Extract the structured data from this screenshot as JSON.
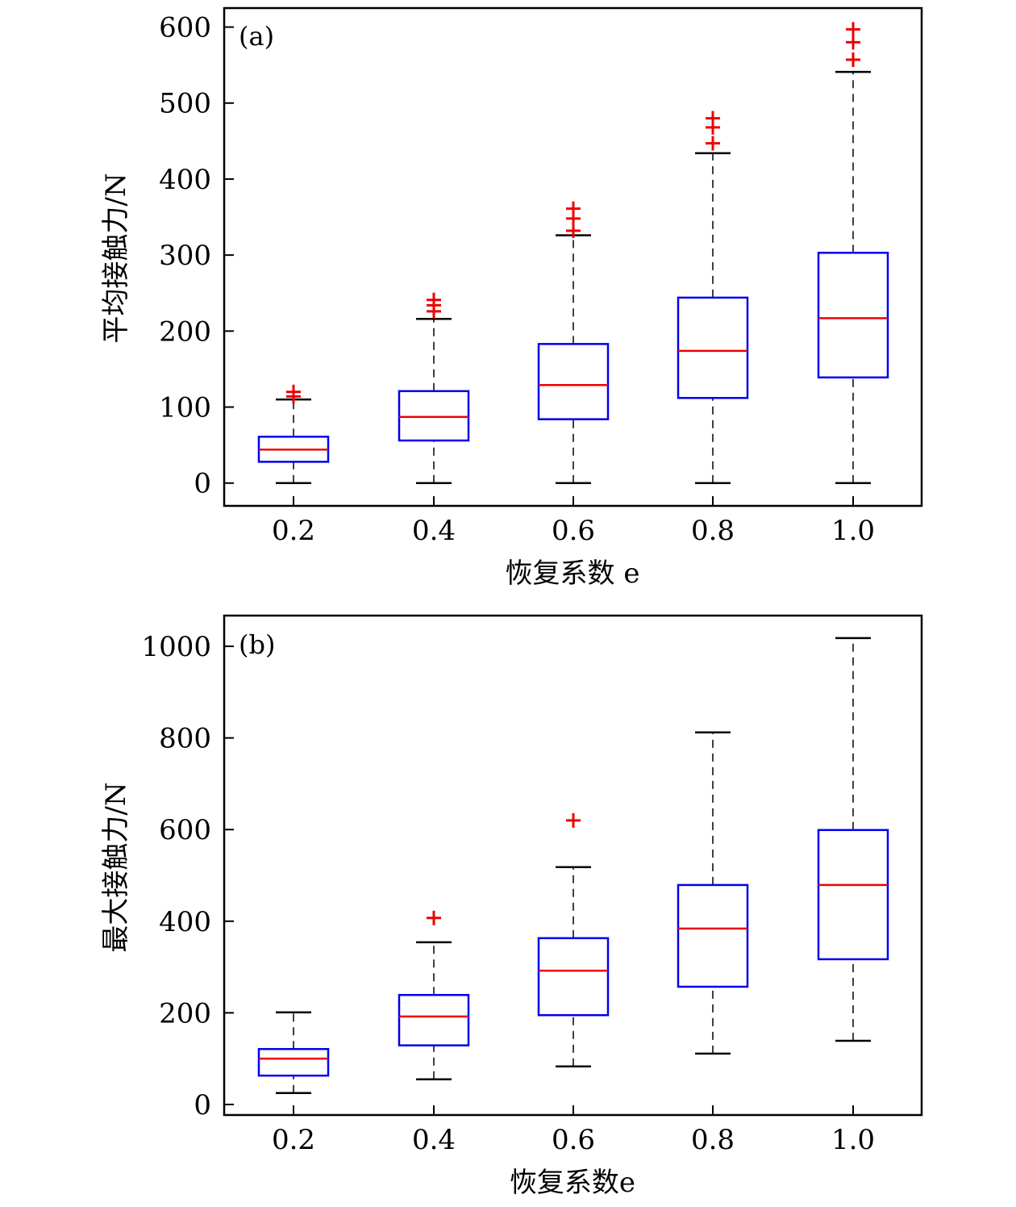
{
  "chart_data": [
    {
      "type": "box",
      "panel_label": "(a)",
      "xlabel": "恢复系数 e",
      "ylabel": "平均接触力/N",
      "categories": [
        "0.2",
        "0.4",
        "0.6",
        "0.8",
        "1.0"
      ],
      "ylim": [
        -30,
        625
      ],
      "yticks": [
        0,
        100,
        200,
        300,
        400,
        500,
        600
      ],
      "grid": false,
      "boxes": [
        {
          "whisker_low": 0,
          "q1": 28,
          "median": 44,
          "q3": 61,
          "whisker_high": 110,
          "outliers": [
            114,
            120
          ]
        },
        {
          "whisker_low": 0,
          "q1": 56,
          "median": 87,
          "q3": 121,
          "whisker_high": 216,
          "outliers": [
            226,
            234,
            241
          ]
        },
        {
          "whisker_low": 0,
          "q1": 84,
          "median": 129,
          "q3": 183,
          "whisker_high": 326,
          "outliers": [
            332,
            348,
            361
          ]
        },
        {
          "whisker_low": 0,
          "q1": 112,
          "median": 174,
          "q3": 244,
          "whisker_high": 434,
          "outliers": [
            447,
            468,
            480
          ]
        },
        {
          "whisker_low": 0,
          "q1": 139,
          "median": 217,
          "q3": 303,
          "whisker_high": 541,
          "outliers": [
            557,
            580,
            597
          ]
        }
      ]
    },
    {
      "type": "box",
      "panel_label": "(b)",
      "xlabel": "恢复系数e",
      "ylabel": "最大接触力/N",
      "categories": [
        "0.2",
        "0.4",
        "0.6",
        "0.8",
        "1.0"
      ],
      "ylim": [
        -23,
        1067
      ],
      "yticks": [
        0,
        200,
        400,
        600,
        800,
        1000
      ],
      "grid": false,
      "boxes": [
        {
          "whisker_low": 25,
          "q1": 63,
          "median": 100,
          "q3": 121,
          "whisker_high": 201,
          "outliers": []
        },
        {
          "whisker_low": 55,
          "q1": 129,
          "median": 192,
          "q3": 239,
          "whisker_high": 354,
          "outliers": [
            407
          ]
        },
        {
          "whisker_low": 83,
          "q1": 195,
          "median": 292,
          "q3": 363,
          "whisker_high": 518,
          "outliers": [
            620
          ]
        },
        {
          "whisker_low": 111,
          "q1": 257,
          "median": 384,
          "q3": 479,
          "whisker_high": 812,
          "outliers": []
        },
        {
          "whisker_low": 139,
          "q1": 317,
          "median": 479,
          "q3": 599,
          "whisker_high": 1018,
          "outliers": []
        }
      ]
    }
  ],
  "colors": {
    "box": "#0000ee",
    "median": "#ee0000",
    "outlier": "#ee0000",
    "whisker": "#000000"
  }
}
